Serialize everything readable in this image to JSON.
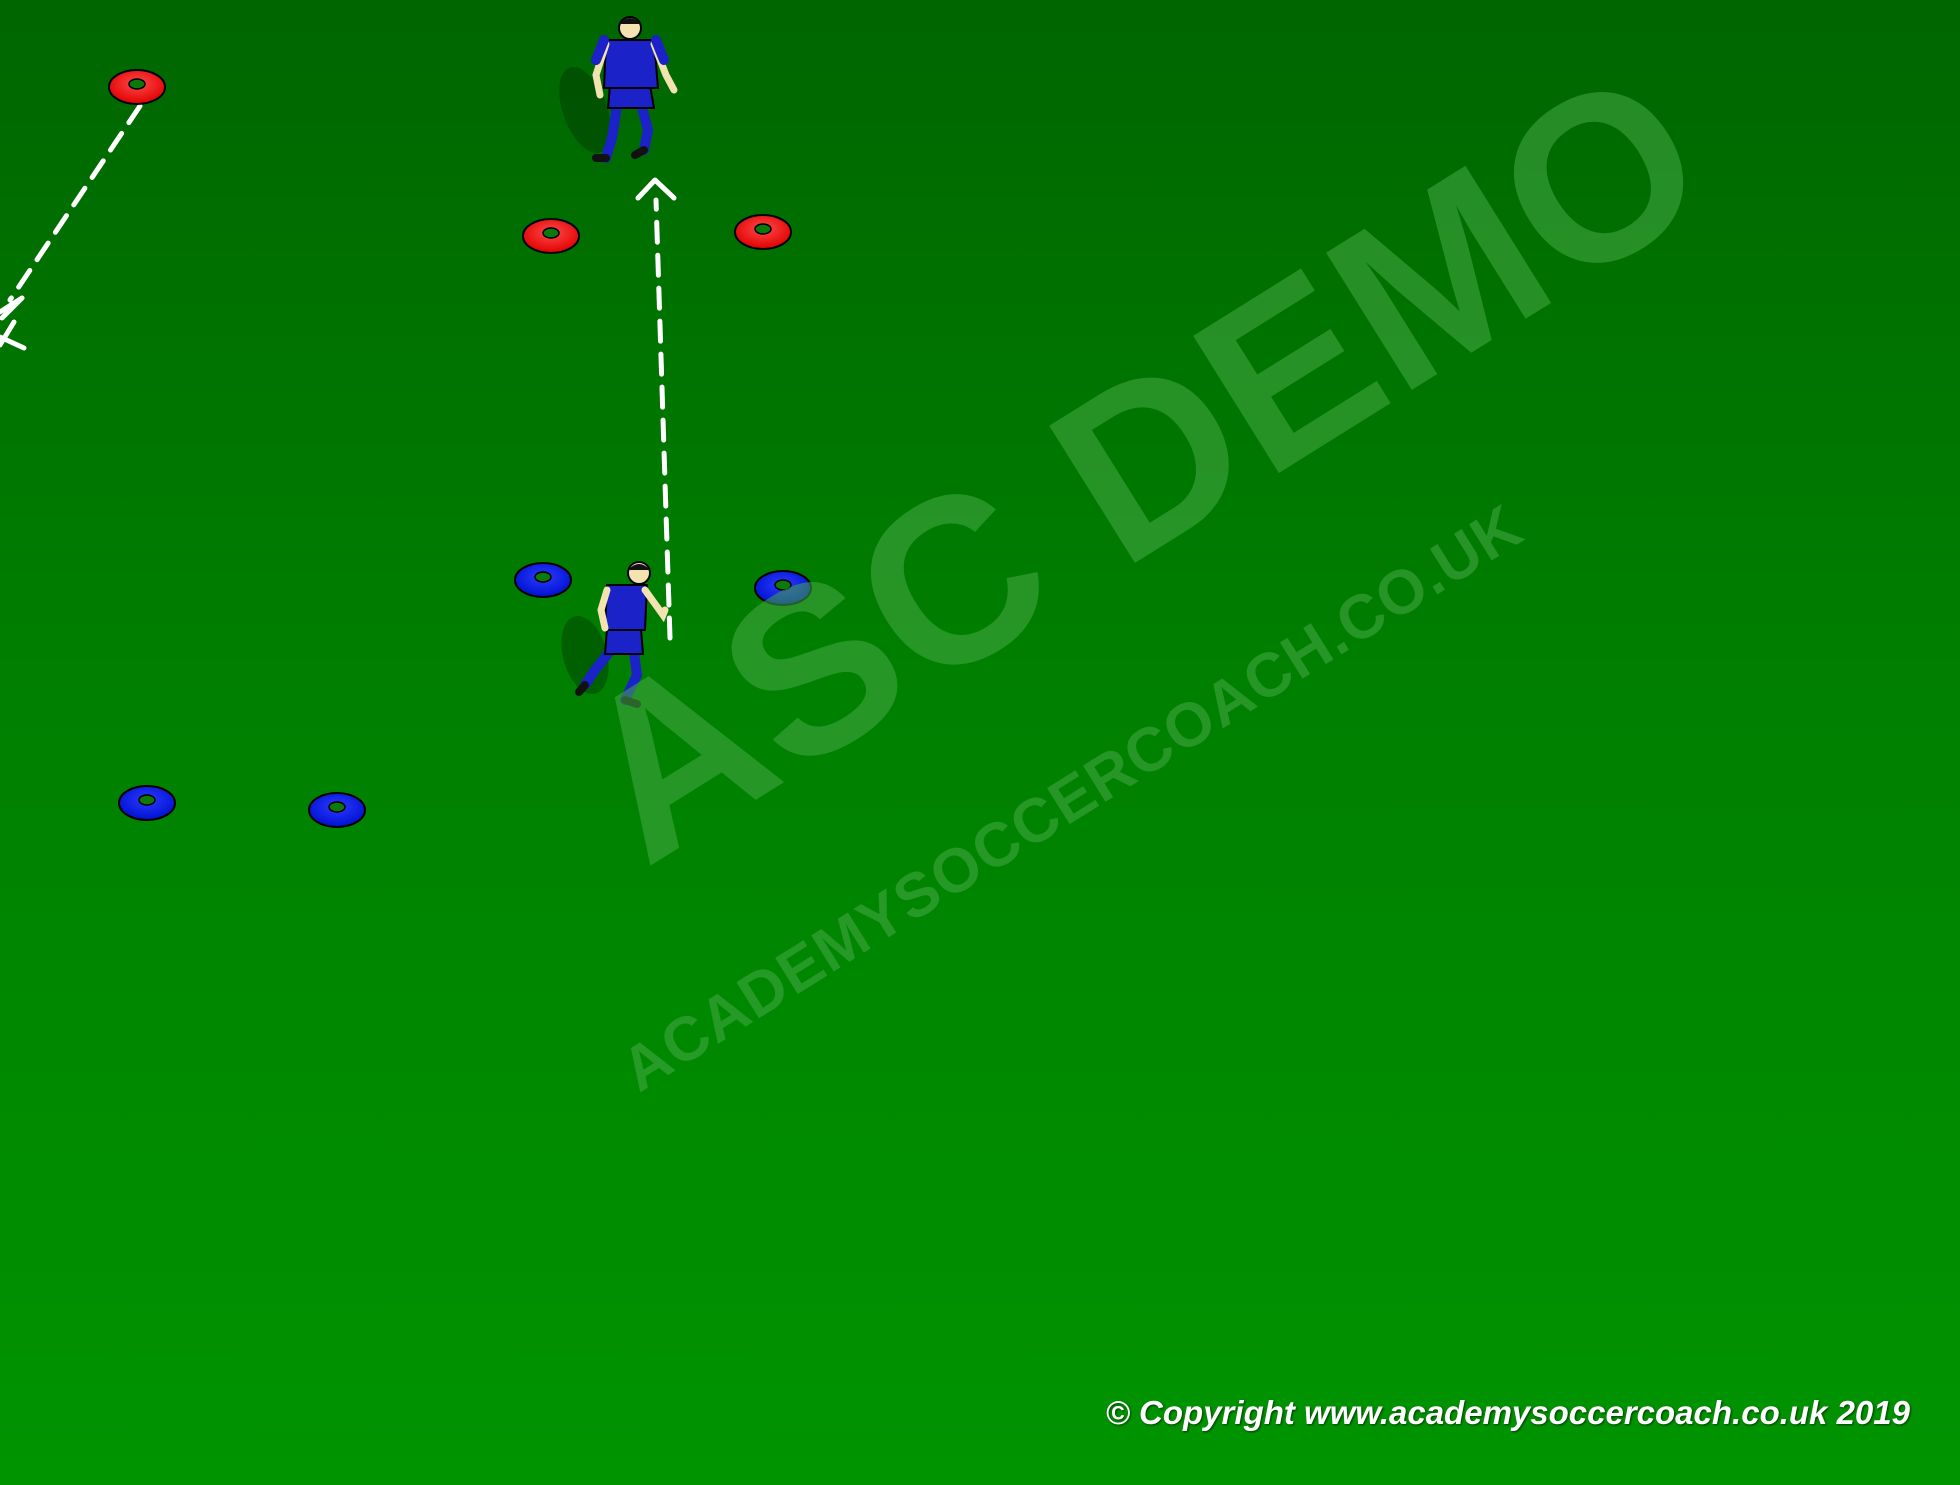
{
  "watermark": {
    "title": "ASC DEMO",
    "subtitle": "ACADEMYSOCCERCOACH.CO.UK"
  },
  "copyright": "© Copyright www.academysoccercoach.co.uk 2019",
  "colors": {
    "cone_red": "#ff1a1a",
    "cone_blue": "#0a1ee8",
    "player_kit": "#1a22c8",
    "arrow": "#ffffff"
  }
}
